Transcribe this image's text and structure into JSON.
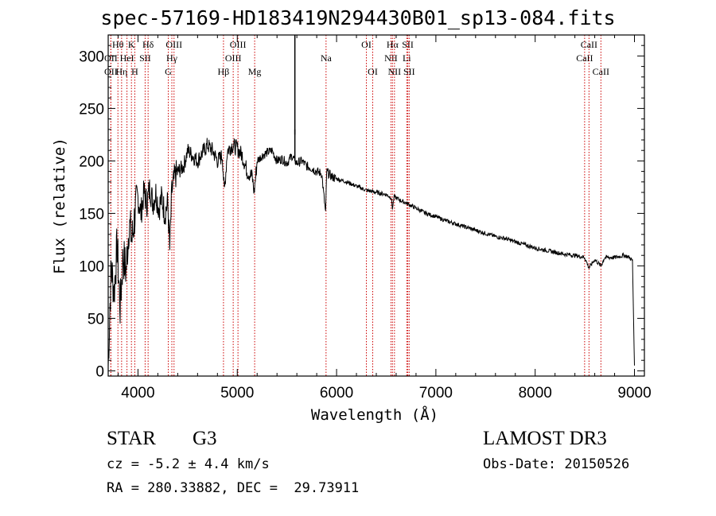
{
  "chart_data": {
    "type": "line",
    "title": "spec-57169-HD183419N294430B01_sp13-084.fits",
    "xlabel": "Wavelength (Å)",
    "ylabel": "Flux (relative)",
    "xlim": [
      3700,
      9100
    ],
    "ylim": [
      -5,
      320
    ],
    "xticks": [
      4000,
      5000,
      6000,
      7000,
      8000,
      9000
    ],
    "xtick_labels": [
      "4000",
      "5000",
      "6000",
      "7000",
      "8000",
      "9000"
    ],
    "yticks": [
      0,
      50,
      100,
      150,
      200,
      250,
      300
    ],
    "ytick_labels": [
      "0",
      "50",
      "100",
      "150",
      "200",
      "250",
      "300"
    ],
    "series": [
      {
        "name": "flux",
        "x": [
          3700,
          3730,
          3760,
          3790,
          3820,
          3850,
          3880,
          3910,
          3940,
          3970,
          4000,
          4030,
          4060,
          4090,
          4120,
          4150,
          4180,
          4210,
          4240,
          4270,
          4300,
          4320,
          4340,
          4370,
          4400,
          4430,
          4460,
          4500,
          4550,
          4600,
          4650,
          4700,
          4750,
          4800,
          4850,
          4870,
          4900,
          4950,
          5000,
          5050,
          5100,
          5150,
          5170,
          5200,
          5250,
          5300,
          5350,
          5400,
          5450,
          5500,
          5550,
          5580,
          5600,
          5650,
          5700,
          5750,
          5800,
          5850,
          5890,
          5900,
          5950,
          6000,
          6100,
          6200,
          6300,
          6400,
          6500,
          6550,
          6563,
          6580,
          6650,
          6700,
          6800,
          6900,
          7000,
          7100,
          7200,
          7300,
          7400,
          7500,
          7600,
          7700,
          7800,
          7900,
          8000,
          8100,
          8200,
          8300,
          8400,
          8498,
          8542,
          8600,
          8662,
          8700,
          8800,
          8900,
          8950,
          8980,
          9000
        ],
        "y": [
          5,
          100,
          75,
          120,
          60,
          110,
          95,
          140,
          125,
          150,
          165,
          150,
          170,
          160,
          175,
          160,
          170,
          155,
          165,
          150,
          160,
          115,
          170,
          185,
          190,
          192,
          195,
          210,
          205,
          200,
          208,
          215,
          210,
          200,
          205,
          170,
          210,
          215,
          212,
          205,
          190,
          185,
          170,
          200,
          205,
          208,
          210,
          200,
          202,
          198,
          205,
          200,
          198,
          200,
          195,
          193,
          190,
          188,
          150,
          190,
          185,
          183,
          180,
          176,
          172,
          170,
          168,
          165,
          155,
          166,
          162,
          160,
          155,
          150,
          147,
          143,
          140,
          137,
          134,
          131,
          128,
          126,
          123,
          120,
          117,
          115,
          113,
          111,
          110,
          108,
          98,
          106,
          100,
          108,
          108,
          110,
          108,
          105,
          5
        ]
      }
    ],
    "spectral_lines": [
      {
        "label": "OII",
        "wavelength": 3727,
        "row": 2
      },
      {
        "label": "OII",
        "wavelength": 3727,
        "row": 3
      },
      {
        "label": "Hθ",
        "wavelength": 3798,
        "row": 1
      },
      {
        "label": "Hη",
        "wavelength": 3835,
        "row": 3
      },
      {
        "label": "HeI",
        "wavelength": 3889,
        "row": 2
      },
      {
        "label": "K",
        "wavelength": 3934,
        "row": 1
      },
      {
        "label": "H",
        "wavelength": 3968,
        "row": 3
      },
      {
        "label": "SII",
        "wavelength": 4072,
        "row": 2
      },
      {
        "label": "Hδ",
        "wavelength": 4102,
        "row": 1
      },
      {
        "label": "G",
        "wavelength": 4305,
        "row": 3
      },
      {
        "label": "Hγ",
        "wavelength": 4341,
        "row": 2
      },
      {
        "label": "OIII",
        "wavelength": 4363,
        "row": 1
      },
      {
        "label": "Hβ",
        "wavelength": 4861,
        "row": 3
      },
      {
        "label": "OIII",
        "wavelength": 4959,
        "row": 2
      },
      {
        "label": "OIII",
        "wavelength": 5007,
        "row": 1
      },
      {
        "label": "Mg",
        "wavelength": 5175,
        "row": 3
      },
      {
        "label": "Na",
        "wavelength": 5894,
        "row": 2
      },
      {
        "label": "OI",
        "wavelength": 6300,
        "row": 1
      },
      {
        "label": "OI",
        "wavelength": 6364,
        "row": 3
      },
      {
        "label": "NII",
        "wavelength": 6548,
        "row": 2
      },
      {
        "label": "Hα",
        "wavelength": 6563,
        "row": 1
      },
      {
        "label": "NII",
        "wavelength": 6583,
        "row": 3
      },
      {
        "label": "SII",
        "wavelength": 6717,
        "row": 1
      },
      {
        "label": "Li",
        "wavelength": 6707,
        "row": 2
      },
      {
        "label": "SII",
        "wavelength": 6731,
        "row": 3
      },
      {
        "label": "CaII",
        "wavelength": 8498,
        "row": 2
      },
      {
        "label": "CaII",
        "wavelength": 8542,
        "row": 1
      },
      {
        "label": "CaII",
        "wavelength": 8662,
        "row": 3
      }
    ]
  },
  "info": {
    "object_class": "STAR",
    "subclass": "G3",
    "survey": "LAMOST DR3",
    "cz": "cz = -5.2 ± 4.4 km/s",
    "obs_date": "Obs-Date: 20150526",
    "coords": "RA = 280.33882, DEC =  29.73911"
  },
  "colors": {
    "line_marker": "#cc0000",
    "spectrum": "#000000",
    "background": "#ffffff"
  }
}
